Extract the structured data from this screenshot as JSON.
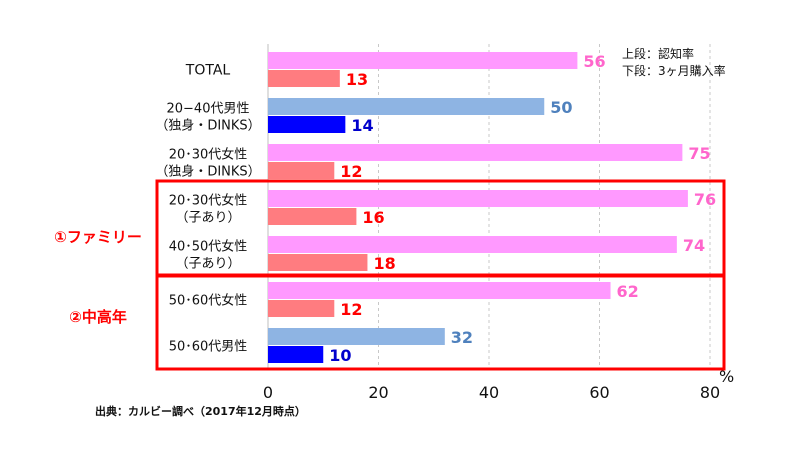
{
  "chart_data": {
    "type": "bar",
    "orientation": "horizontal",
    "categories": [
      [
        "TOTAL"
      ],
      [
        "20−40代男性",
        "（独身・DINKS）"
      ],
      [
        "20･30代女性",
        "（独身・DINKS）"
      ],
      [
        "20･30代女性",
        "（子あり）"
      ],
      [
        "40･50代女性",
        "（子あり）"
      ],
      [
        "50･60代女性"
      ],
      [
        "50･60代男性"
      ]
    ],
    "series": [
      {
        "name": "上段：認知率",
        "values": [
          56,
          50,
          75,
          76,
          74,
          62,
          32
        ]
      },
      {
        "name": "下段：3ヶ月購入率",
        "values": [
          13,
          14,
          12,
          16,
          18,
          12,
          10
        ]
      }
    ],
    "colors": {
      "female_top": "#ff99ff",
      "female_bottom": "#ff7c80",
      "male_top": "#8eb4e3",
      "male_bottom": "#0000ff",
      "female_top_label": "#ff66cc",
      "female_bottom_label": "#ff0000",
      "male_top_label": "#4f81bd",
      "male_bottom_label": "#0000cc",
      "highlight": "#ff0000"
    },
    "bar_colors": {
      "top": [
        "female",
        "male",
        "female",
        "female",
        "female",
        "female",
        "male"
      ],
      "bottom": [
        "female",
        "male",
        "female",
        "female",
        "female",
        "female",
        "male"
      ]
    },
    "xlim": [
      0,
      80
    ],
    "xticks": [
      0,
      20,
      40,
      60,
      80
    ],
    "xlabel": "%",
    "grid": "vertical-dashed",
    "legend": {
      "position": "top-right",
      "lines": [
        "上段：認知率",
        "下段：3ヶ月購入率"
      ]
    },
    "groups": [
      {
        "label": "①ファミリー",
        "categories": [
          3,
          4
        ]
      },
      {
        "label": "②中高年",
        "categories": [
          5,
          6
        ]
      }
    ],
    "source": "出典：カルビー調べ（2017年12月時点）"
  }
}
